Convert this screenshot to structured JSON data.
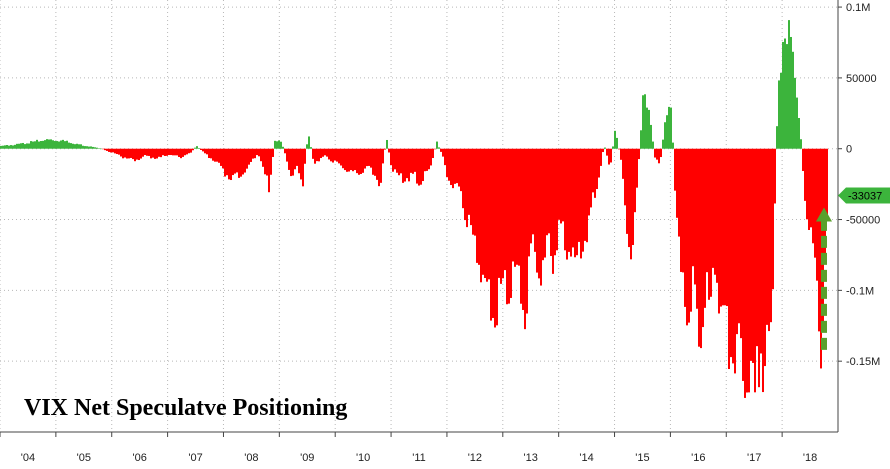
{
  "chart_data": {
    "type": "bar",
    "title": "VIX Net Speculatve Positioning",
    "x_tick_labels": [
      "'04",
      "'05",
      "'06",
      "'07",
      "'08",
      "'09",
      "'10",
      "'11",
      "'12",
      "'13",
      "'14",
      "'15",
      "'16",
      "'17",
      "'18"
    ],
    "y_ticks": [
      {
        "value": 100000,
        "label": "0.1M"
      },
      {
        "value": 50000,
        "label": "50000"
      },
      {
        "value": 0,
        "label": "0"
      },
      {
        "value": -50000,
        "label": "-50000"
      },
      {
        "value": -100000,
        "label": "-0.1M"
      },
      {
        "value": -150000,
        "label": "-0.15M"
      }
    ],
    "ylim": [
      -200000,
      105000
    ],
    "xlim": [
      2004.0,
      2019.0
    ],
    "grid": true,
    "y_axis_position": "right",
    "last_value": -33037,
    "last_value_label": "-33037",
    "positive_color": "#3cb43c",
    "negative_color": "#ff0000",
    "arrow_color": "#5aa02c",
    "series": [
      {
        "points": [
          [
            2004.0,
            2000
          ],
          [
            2004.3,
            3000
          ],
          [
            2004.6,
            5000
          ],
          [
            2004.8,
            6500
          ],
          [
            2005.0,
            6000
          ],
          [
            2005.2,
            5000
          ],
          [
            2005.4,
            3000
          ],
          [
            2005.6,
            1500
          ],
          [
            2005.8,
            0
          ],
          [
            2006.0,
            -3000
          ],
          [
            2006.2,
            -6000
          ],
          [
            2006.4,
            -8000
          ],
          [
            2006.6,
            -5000
          ],
          [
            2006.8,
            -7000
          ],
          [
            2007.0,
            -4000
          ],
          [
            2007.2,
            -6000
          ],
          [
            2007.4,
            -3000
          ],
          [
            2007.5,
            2000
          ],
          [
            2007.7,
            -5000
          ],
          [
            2007.9,
            -10000
          ],
          [
            2008.0,
            -18000
          ],
          [
            2008.2,
            -20000
          ],
          [
            2008.4,
            -15000
          ],
          [
            2008.5,
            -8000
          ],
          [
            2008.6,
            -3000
          ],
          [
            2008.7,
            -15000
          ],
          [
            2008.8,
            -28000
          ],
          [
            2008.9,
            5000
          ],
          [
            2009.0,
            7000
          ],
          [
            2009.1,
            -5000
          ],
          [
            2009.2,
            -22000
          ],
          [
            2009.3,
            -12000
          ],
          [
            2009.4,
            -25000
          ],
          [
            2009.5,
            12000
          ],
          [
            2009.6,
            -10000
          ],
          [
            2009.8,
            -5000
          ],
          [
            2010.0,
            -10000
          ],
          [
            2010.2,
            -15000
          ],
          [
            2010.4,
            -18000
          ],
          [
            2010.6,
            -12000
          ],
          [
            2010.8,
            -25000
          ],
          [
            2010.9,
            8000
          ],
          [
            2011.0,
            -15000
          ],
          [
            2011.2,
            -22000
          ],
          [
            2011.4,
            -18000
          ],
          [
            2011.5,
            -25000
          ],
          [
            2011.7,
            -12000
          ],
          [
            2011.8,
            5000
          ],
          [
            2011.9,
            -5000
          ],
          [
            2012.0,
            -20000
          ],
          [
            2012.2,
            -30000
          ],
          [
            2012.4,
            -55000
          ],
          [
            2012.6,
            -85000
          ],
          [
            2012.8,
            -110000
          ],
          [
            2013.0,
            -100000
          ],
          [
            2013.2,
            -85000
          ],
          [
            2013.4,
            -115000
          ],
          [
            2013.5,
            -70000
          ],
          [
            2013.7,
            -95000
          ],
          [
            2013.8,
            -60000
          ],
          [
            2013.9,
            -80000
          ],
          [
            2014.0,
            -50000
          ],
          [
            2014.2,
            -75000
          ],
          [
            2014.3,
            -85000
          ],
          [
            2014.5,
            -55000
          ],
          [
            2014.6,
            -35000
          ],
          [
            2014.7,
            -20000
          ],
          [
            2014.8,
            3000
          ],
          [
            2014.9,
            -15000
          ],
          [
            2015.0,
            15000
          ],
          [
            2015.1,
            -10000
          ],
          [
            2015.2,
            -50000
          ],
          [
            2015.3,
            -75000
          ],
          [
            2015.4,
            -20000
          ],
          [
            2015.5,
            38000
          ],
          [
            2015.6,
            30000
          ],
          [
            2015.7,
            -5000
          ],
          [
            2015.8,
            -10000
          ],
          [
            2015.9,
            25000
          ],
          [
            2016.0,
            28000
          ],
          [
            2016.1,
            -55000
          ],
          [
            2016.2,
            -100000
          ],
          [
            2016.3,
            -120000
          ],
          [
            2016.4,
            -90000
          ],
          [
            2016.5,
            -130000
          ],
          [
            2016.6,
            -100000
          ],
          [
            2016.7,
            -110000
          ],
          [
            2016.8,
            -80000
          ],
          [
            2016.9,
            -120000
          ],
          [
            2017.0,
            -135000
          ],
          [
            2017.1,
            -140000
          ],
          [
            2017.2,
            -130000
          ],
          [
            2017.3,
            -150000
          ],
          [
            2017.4,
            -165000
          ],
          [
            2017.5,
            -175000
          ],
          [
            2017.6,
            -140000
          ],
          [
            2017.7,
            -155000
          ],
          [
            2017.8,
            -120000
          ],
          [
            2017.9,
            30000
          ],
          [
            2018.0,
            85000
          ],
          [
            2018.1,
            92000
          ],
          [
            2018.2,
            55000
          ],
          [
            2018.3,
            20000
          ],
          [
            2018.4,
            -40000
          ],
          [
            2018.5,
            -60000
          ],
          [
            2018.6,
            -105000
          ],
          [
            2018.7,
            -140000
          ],
          [
            2018.8,
            -33037
          ]
        ]
      }
    ]
  }
}
